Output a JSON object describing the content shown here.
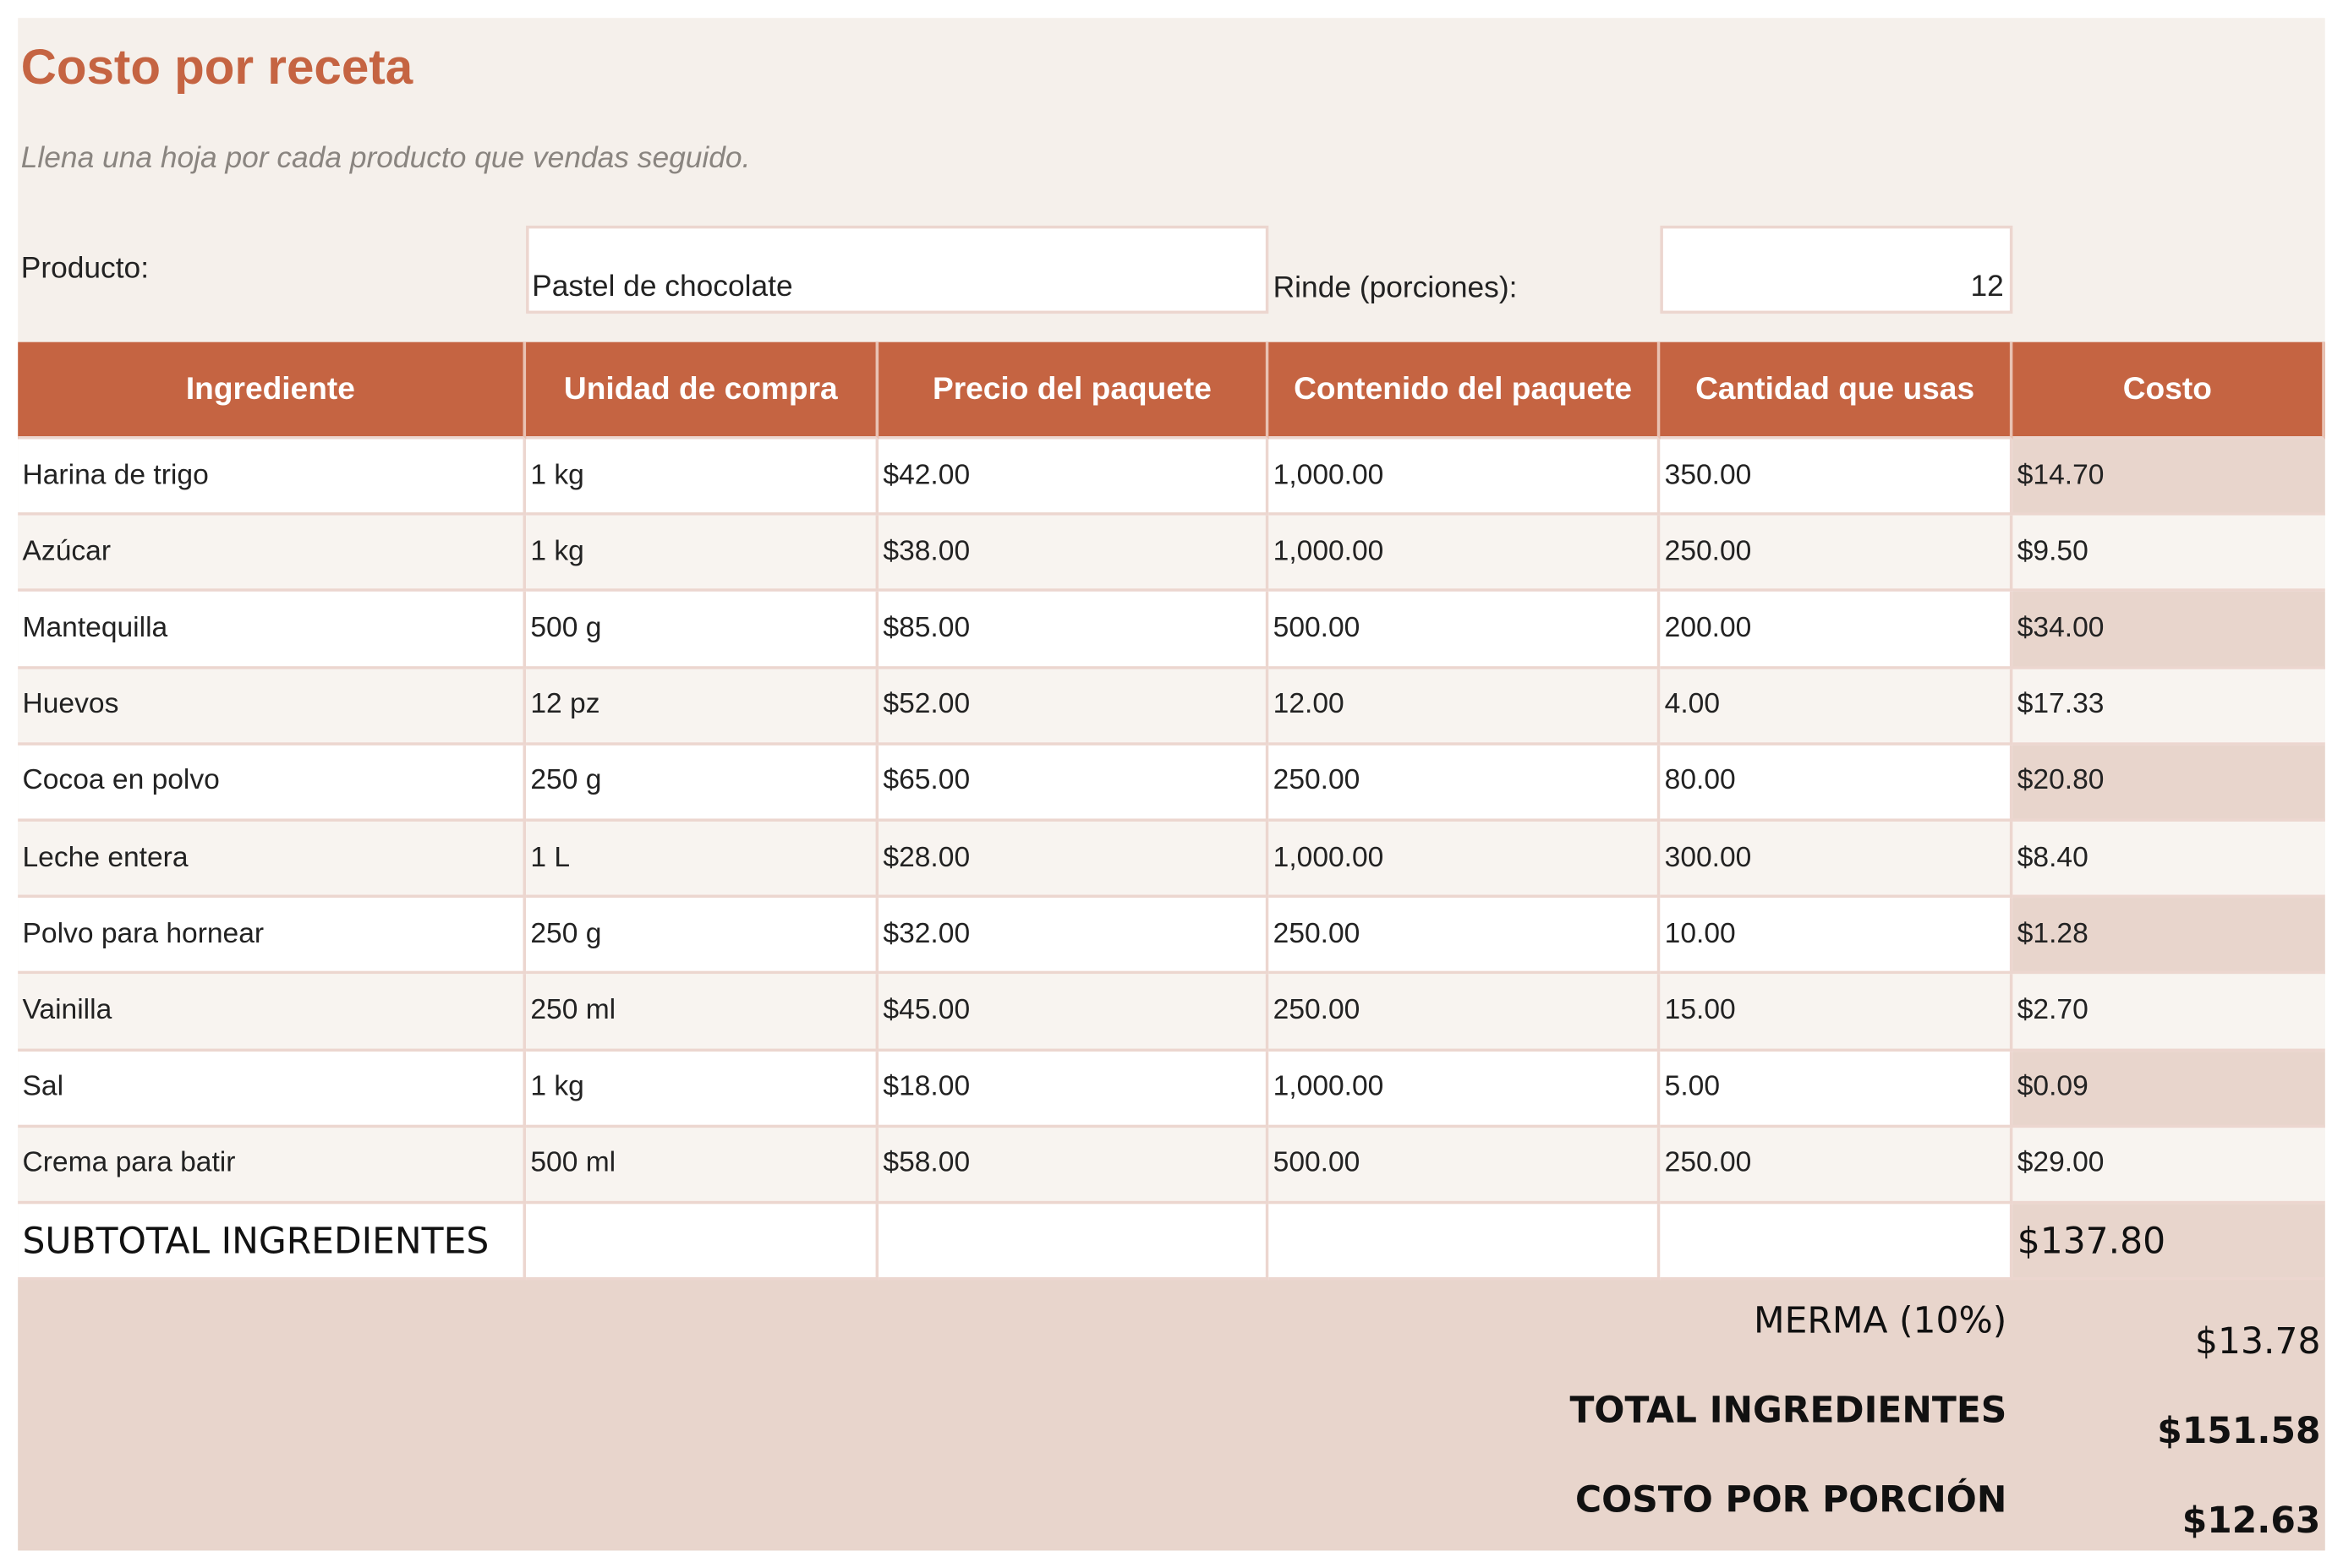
{
  "header": {
    "title": "Costo por receta",
    "subtitle": "Llena una hoja por cada producto que vendas seguido."
  },
  "product": {
    "label": "Producto:",
    "value": "Pastel de chocolate"
  },
  "yield": {
    "label": "Rinde (porciones):",
    "value": "12"
  },
  "table": {
    "columns": [
      "Ingrediente",
      "Unidad de compra",
      "Precio del paquete",
      "Contenido del paquete",
      "Cantidad que usas",
      "Costo"
    ],
    "rows": [
      [
        "Harina de trigo",
        "1 kg",
        "$42.00",
        "1,000.00",
        "350.00",
        "$14.70"
      ],
      [
        "Azúcar",
        "1 kg",
        "$38.00",
        "1,000.00",
        "250.00",
        "$9.50"
      ],
      [
        "Mantequilla",
        "500 g",
        "$85.00",
        "500.00",
        "200.00",
        "$34.00"
      ],
      [
        "Huevos",
        "12 pz",
        "$52.00",
        "12.00",
        "4.00",
        "$17.33"
      ],
      [
        "Cocoa en polvo",
        "250 g",
        "$65.00",
        "250.00",
        "80.00",
        "$20.80"
      ],
      [
        "Leche entera",
        "1 L",
        "$28.00",
        "1,000.00",
        "300.00",
        "$8.40"
      ],
      [
        "Polvo para hornear",
        "250 g",
        "$32.00",
        "250.00",
        "10.00",
        "$1.28"
      ],
      [
        "Vainilla",
        "250 ml",
        "$45.00",
        "250.00",
        "15.00",
        "$2.70"
      ],
      [
        "Sal",
        "1 kg",
        "$18.00",
        "1,000.00",
        "5.00",
        "$0.09"
      ],
      [
        "Crema para batir",
        "500 ml",
        "$58.00",
        "500.00",
        "250.00",
        "$29.00"
      ]
    ],
    "subtotal": {
      "label": "SUBTOTAL INGREDIENTES",
      "value": "$137.80"
    }
  },
  "summary": [
    {
      "label": "MERMA (10%)",
      "value": "$13.78"
    },
    {
      "label": "TOTAL INGREDIENTES",
      "value": "$151.58"
    },
    {
      "label": "COSTO POR PORCIÓN",
      "value": "$12.63"
    }
  ]
}
